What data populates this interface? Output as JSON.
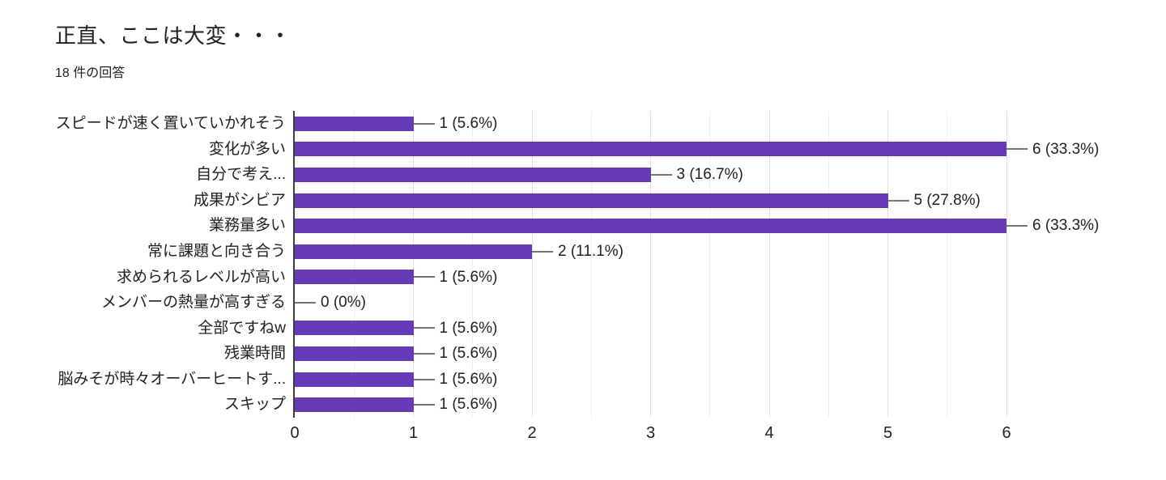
{
  "header": {
    "title": "正直、ここは大変・・・",
    "subtitle": "18 件の回答"
  },
  "colors": {
    "bar": "#673ab7",
    "axis_line": "#3c3c3c",
    "grid_major": "#e3e3e3",
    "grid_minor": "#f0f0f0",
    "connector": "#757575",
    "text": "#202124"
  },
  "chart_data": {
    "type": "bar",
    "orientation": "horizontal",
    "title": "正直、ここは大変・・・",
    "subtitle": "18 件の回答",
    "total_responses_text": "18 件の回答",
    "categories": [
      "スピードが速く置いていかれそう",
      "変化が多い",
      "自分で考え...",
      "成果がシビア",
      "業務量多い",
      "常に課題と向き合う",
      "求められるレベルが高い",
      "メンバーの熱量が高すぎる",
      "全部ですねw",
      "残業時間",
      "脳みそが時々オーバーヒートす...",
      "スキップ"
    ],
    "values": [
      1,
      6,
      3,
      5,
      6,
      2,
      1,
      0,
      1,
      1,
      1,
      1
    ],
    "value_labels": [
      "1 (5.6%)",
      "6 (33.3%)",
      "3 (16.7%)",
      "5 (27.8%)",
      "6 (33.3%)",
      "2 (11.1%)",
      "1 (5.6%)",
      "0 (0%)",
      "1 (5.6%)",
      "1 (5.6%)",
      "1 (5.6%)",
      "1 (5.6%)"
    ],
    "xlim": [
      0,
      6
    ],
    "x_ticks": [
      0,
      1,
      2,
      3,
      4,
      5,
      6
    ],
    "grid": true,
    "minor_grid_step": 0.5,
    "legend": "none"
  }
}
